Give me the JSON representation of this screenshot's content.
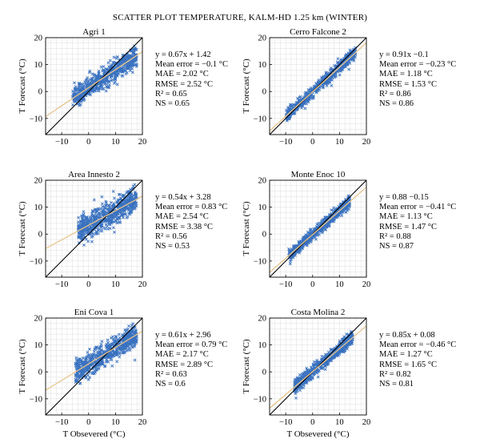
{
  "figure": {
    "title": "SCATTER PLOT TEMPERATURE, KALM-HD 1.25 km (WINTER)"
  },
  "colors": {
    "points": "#3a72c0",
    "regression_line": "#e8c48c",
    "identity_line": "#000000",
    "grid": "#e3e3e3"
  },
  "chart_data": [
    {
      "type": "scatter",
      "title": "Agri 1",
      "xlabel": "",
      "ylabel": "T Forecast (°C)",
      "xlim": [
        -16,
        20
      ],
      "ylim": [
        -16,
        20
      ],
      "xticks": [
        -10,
        0,
        10,
        20
      ],
      "yticks": [
        -10,
        0,
        10,
        20
      ],
      "grid": true,
      "fit": {
        "slope": 0.67,
        "intercept": 1.42
      },
      "cloud": {
        "xrange": [
          -6,
          18
        ],
        "spread": 2.6
      },
      "stats": [
        "y = 0.67x + 1.42",
        "Mean error = −0.1 °C",
        "MAE = 2.02 °C",
        "RMSE = 2.52 °C",
        "R² = 0.65",
        "NS = 0.65"
      ]
    },
    {
      "type": "scatter",
      "title": "Cerro Falcone 2",
      "xlabel": "",
      "ylabel": "T Forecast (°C)",
      "xlim": [
        -16,
        20
      ],
      "ylim": [
        -16,
        20
      ],
      "xticks": [
        -10,
        0,
        10,
        20
      ],
      "yticks": [
        -10,
        0,
        10,
        20
      ],
      "grid": true,
      "fit": {
        "slope": 0.91,
        "intercept": -0.1
      },
      "cloud": {
        "xrange": [
          -10,
          16
        ],
        "spread": 1.5
      },
      "stats": [
        "y = 0.91x −0.1",
        "Mean error = −0.23 °C",
        "MAE = 1.18 °C",
        "RMSE = 1.53 °C",
        "R² = 0.86",
        "NS = 0.86"
      ]
    },
    {
      "type": "scatter",
      "title": "Area Innesto 2",
      "xlabel": "",
      "ylabel": "T Forecast (°C)",
      "xlim": [
        -16,
        20
      ],
      "ylim": [
        -16,
        20
      ],
      "xticks": [
        -10,
        0,
        10,
        20
      ],
      "yticks": [
        -10,
        0,
        10,
        20
      ],
      "grid": true,
      "fit": {
        "slope": 0.54,
        "intercept": 3.28
      },
      "cloud": {
        "xrange": [
          -4,
          18
        ],
        "spread": 3.2
      },
      "stats": [
        "y = 0.54x + 3.28",
        "Mean error = 0.83 °C",
        "MAE = 2.54 °C",
        "RMSE = 3.38 °C",
        "R² = 0.56",
        "NS = 0.53"
      ]
    },
    {
      "type": "scatter",
      "title": "Monte Enoc 10",
      "xlabel": "",
      "ylabel": "T Forecast (°C)",
      "xlim": [
        -16,
        20
      ],
      "ylim": [
        -16,
        20
      ],
      "xticks": [
        -10,
        0,
        10,
        20
      ],
      "yticks": [
        -10,
        0,
        10,
        20
      ],
      "grid": true,
      "fit": {
        "slope": 0.88,
        "intercept": -0.15
      },
      "cloud": {
        "xrange": [
          -9,
          14
        ],
        "spread": 1.5
      },
      "stats": [
        "y = 0.88 −0.15",
        "Mean error = −0.41 °C",
        "MAE = 1.13 °C",
        "RMSE = 1.47 °C",
        "R² = 0.88",
        "NS = 0.87"
      ]
    },
    {
      "type": "scatter",
      "title": "Eni Cova 1",
      "xlabel": "T Obsevered (°C)",
      "ylabel": "T Forecast (°C)",
      "xlim": [
        -16,
        20
      ],
      "ylim": [
        -16,
        20
      ],
      "xticks": [
        -10,
        0,
        10,
        20
      ],
      "yticks": [
        -10,
        0,
        10,
        20
      ],
      "grid": true,
      "fit": {
        "slope": 0.61,
        "intercept": 2.96
      },
      "cloud": {
        "xrange": [
          -5,
          18
        ],
        "spread": 2.9
      },
      "stats": [
        "y = 0.61x + 2.96",
        "Mean error = 0.79 °C",
        "MAE = 2.17 °C",
        "RMSE = 2.89 °C",
        "R² = 0.63",
        "NS = 0.6"
      ]
    },
    {
      "type": "scatter",
      "title": "Costa Molina 2",
      "xlabel": "T Obsevered (°C)",
      "ylabel": "T Forecast (°C)",
      "xlim": [
        -16,
        20
      ],
      "ylim": [
        -16,
        20
      ],
      "xticks": [
        -10,
        0,
        10,
        20
      ],
      "yticks": [
        -10,
        0,
        10,
        20
      ],
      "grid": true,
      "fit": {
        "slope": 0.85,
        "intercept": 0.08
      },
      "cloud": {
        "xrange": [
          -7,
          15
        ],
        "spread": 1.7
      },
      "stats": [
        "y = 0.85x + 0.08",
        "Mean error = −0.46 °C",
        "MAE = 1.27 °C",
        "RMSE = 1.65 °C",
        "R² = 0.82",
        "NS = 0.81"
      ]
    }
  ]
}
